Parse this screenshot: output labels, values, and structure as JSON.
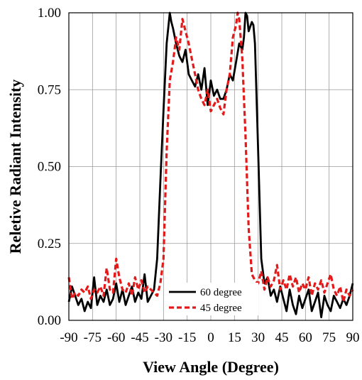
{
  "chart_data": {
    "type": "line",
    "xlabel": "View Angle (Degree)",
    "ylabel": "Reletive Radiant Intensity",
    "xlim": [
      -90,
      90
    ],
    "ylim": [
      0,
      1
    ],
    "xticks": [
      -90,
      -75,
      -60,
      -45,
      -30,
      -15,
      0,
      15,
      30,
      45,
      60,
      75,
      90
    ],
    "xtick_labels": [
      "-90",
      "-75",
      "-60",
      "-45",
      "-30",
      "-15",
      "0",
      "15",
      "30",
      "45",
      "60",
      "75",
      "90"
    ],
    "yticks": [
      0,
      0.25,
      0.5,
      0.75,
      1
    ],
    "ytick_labels": [
      "0.00",
      "0.25",
      "0.50",
      "0.75",
      "1.00"
    ],
    "grid": true,
    "legend_position": "bottom-center",
    "series": [
      {
        "name": "60 degree",
        "color": "#000000",
        "style": "solid",
        "x": [
          -90,
          -88,
          -86,
          -84,
          -82,
          -80,
          -78,
          -76,
          -74,
          -72,
          -70,
          -68,
          -66,
          -64,
          -62,
          -60,
          -58,
          -56,
          -54,
          -52,
          -50,
          -48,
          -46,
          -44,
          -42,
          -40,
          -38,
          -36,
          -34,
          -32,
          -30,
          -28,
          -26,
          -25,
          -24,
          -22,
          -20,
          -18,
          -16,
          -14,
          -12,
          -10,
          -8,
          -6,
          -4,
          -2,
          0,
          2,
          4,
          6,
          8,
          10,
          12,
          14,
          16,
          18,
          20,
          21,
          22,
          23,
          24,
          26,
          27,
          28,
          30,
          32,
          34,
          36,
          38,
          40,
          42,
          44,
          46,
          48,
          50,
          52,
          54,
          56,
          58,
          60,
          62,
          64,
          66,
          68,
          70,
          72,
          74,
          76,
          78,
          80,
          82,
          84,
          86,
          88,
          90
        ],
        "y": [
          0.06,
          0.11,
          0.08,
          0.05,
          0.07,
          0.03,
          0.06,
          0.04,
          0.14,
          0.05,
          0.08,
          0.06,
          0.1,
          0.05,
          0.07,
          0.12,
          0.06,
          0.1,
          0.05,
          0.08,
          0.11,
          0.06,
          0.09,
          0.07,
          0.15,
          0.06,
          0.08,
          0.1,
          0.2,
          0.45,
          0.68,
          0.9,
          1.0,
          0.97,
          0.95,
          0.9,
          0.86,
          0.84,
          0.88,
          0.8,
          0.78,
          0.76,
          0.8,
          0.75,
          0.82,
          0.7,
          0.78,
          0.73,
          0.75,
          0.72,
          0.72,
          0.75,
          0.8,
          0.78,
          0.84,
          0.9,
          0.88,
          0.92,
          1.0,
          0.99,
          0.94,
          0.97,
          0.96,
          0.9,
          0.55,
          0.2,
          0.12,
          0.14,
          0.08,
          0.1,
          0.06,
          0.11,
          0.07,
          0.03,
          0.1,
          0.05,
          0.02,
          0.08,
          0.04,
          0.07,
          0.1,
          0.03,
          0.06,
          0.09,
          0.01,
          0.08,
          0.05,
          0.03,
          0.08,
          0.06,
          0.04,
          0.07,
          0.05,
          0.08,
          0.12
        ]
      },
      {
        "name": "45 degree",
        "color": "#e31a1a",
        "style": "dashed",
        "x": [
          -90,
          -88,
          -86,
          -84,
          -82,
          -80,
          -78,
          -76,
          -74,
          -72,
          -70,
          -68,
          -66,
          -64,
          -62,
          -60,
          -58,
          -56,
          -54,
          -52,
          -50,
          -48,
          -46,
          -44,
          -42,
          -40,
          -38,
          -36,
          -34,
          -32,
          -30,
          -28,
          -26,
          -24,
          -22,
          -20,
          -18,
          -16,
          -14,
          -12,
          -10,
          -8,
          -6,
          -4,
          -2,
          0,
          2,
          4,
          6,
          8,
          10,
          12,
          14,
          16,
          17,
          18,
          20,
          22,
          24,
          26,
          28,
          30,
          32,
          34,
          36,
          38,
          40,
          42,
          44,
          46,
          48,
          50,
          52,
          54,
          56,
          58,
          60,
          62,
          64,
          66,
          68,
          70,
          72,
          74,
          76,
          78,
          80,
          82,
          84,
          86,
          88,
          90
        ],
        "y": [
          0.14,
          0.07,
          0.09,
          0.08,
          0.1,
          0.09,
          0.11,
          0.07,
          0.1,
          0.09,
          0.11,
          0.08,
          0.17,
          0.1,
          0.09,
          0.2,
          0.14,
          0.1,
          0.09,
          0.12,
          0.08,
          0.14,
          0.1,
          0.13,
          0.09,
          0.11,
          0.1,
          0.09,
          0.08,
          0.12,
          0.2,
          0.55,
          0.78,
          0.84,
          0.92,
          0.88,
          0.98,
          0.94,
          0.9,
          0.85,
          0.8,
          0.75,
          0.72,
          0.7,
          0.75,
          0.68,
          0.7,
          0.72,
          0.69,
          0.67,
          0.75,
          0.8,
          0.92,
          0.96,
          1.0,
          0.98,
          0.85,
          0.6,
          0.3,
          0.15,
          0.13,
          0.12,
          0.16,
          0.1,
          0.14,
          0.11,
          0.13,
          0.18,
          0.1,
          0.13,
          0.1,
          0.15,
          0.11,
          0.14,
          0.09,
          0.12,
          0.1,
          0.14,
          0.08,
          0.12,
          0.1,
          0.13,
          0.09,
          0.12,
          0.15,
          0.1,
          0.08,
          0.11,
          0.06,
          0.1,
          0.08,
          0.1
        ]
      }
    ]
  }
}
